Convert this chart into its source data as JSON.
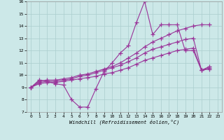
{
  "xlabel": "Windchill (Refroidissement éolien,°C)",
  "xlim": [
    -0.5,
    23.5
  ],
  "ylim": [
    7,
    16
  ],
  "xticks": [
    0,
    1,
    2,
    3,
    4,
    5,
    6,
    7,
    8,
    9,
    10,
    11,
    12,
    13,
    14,
    15,
    16,
    17,
    18,
    19,
    20,
    21,
    22,
    23
  ],
  "yticks": [
    7,
    8,
    9,
    10,
    11,
    12,
    13,
    14,
    15,
    16
  ],
  "bg_color": "#cce8e8",
  "grid_color": "#aacece",
  "line_color": "#993399",
  "series": [
    {
      "x": [
        0,
        1,
        2,
        3,
        4,
        5,
        6,
        7,
        8,
        9,
        10,
        11,
        12,
        13,
        14,
        15,
        16,
        17,
        18,
        19,
        20,
        21,
        22
      ],
      "y": [
        9.0,
        9.6,
        9.5,
        9.3,
        9.2,
        8.0,
        7.4,
        7.4,
        8.9,
        10.3,
        11.0,
        11.8,
        12.4,
        14.3,
        16.0,
        13.3,
        14.1,
        14.1,
        14.1,
        12.0,
        12.0,
        10.4,
        10.7
      ]
    },
    {
      "x": [
        0,
        1,
        2,
        3,
        4,
        5,
        6,
        7,
        8,
        9,
        10,
        11,
        12,
        13,
        14,
        15,
        16,
        17,
        18,
        19,
        20,
        21,
        22
      ],
      "y": [
        9.0,
        9.5,
        9.6,
        9.6,
        9.7,
        9.8,
        10.0,
        10.1,
        10.3,
        10.5,
        10.7,
        11.0,
        11.4,
        11.8,
        12.3,
        12.7,
        13.0,
        13.3,
        13.6,
        13.8,
        14.0,
        14.1,
        14.1
      ]
    },
    {
      "x": [
        0,
        1,
        2,
        3,
        4,
        5,
        6,
        7,
        8,
        9,
        10,
        11,
        12,
        13,
        14,
        15,
        16,
        17,
        18,
        19,
        20,
        21,
        22
      ],
      "y": [
        9.0,
        9.4,
        9.5,
        9.5,
        9.6,
        9.7,
        9.9,
        10.0,
        10.2,
        10.4,
        10.6,
        10.8,
        11.1,
        11.4,
        11.8,
        12.1,
        12.3,
        12.5,
        12.7,
        12.9,
        13.0,
        10.4,
        10.6
      ]
    },
    {
      "x": [
        0,
        1,
        2,
        3,
        4,
        5,
        6,
        7,
        8,
        9,
        10,
        11,
        12,
        13,
        14,
        15,
        16,
        17,
        18,
        19,
        20,
        21,
        22
      ],
      "y": [
        9.0,
        9.3,
        9.4,
        9.4,
        9.5,
        9.6,
        9.7,
        9.8,
        9.9,
        10.1,
        10.2,
        10.4,
        10.6,
        10.9,
        11.2,
        11.4,
        11.6,
        11.8,
        12.0,
        12.1,
        12.2,
        10.4,
        10.5
      ]
    }
  ]
}
